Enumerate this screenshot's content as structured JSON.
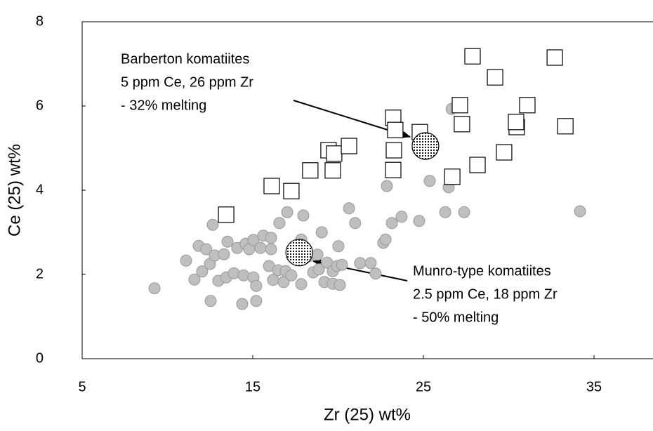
{
  "chart_data": {
    "type": "scatter",
    "x_label": "Zr (25) wt%",
    "y_label": "Ce (25) wt%",
    "xlim": [
      5,
      38.5
    ],
    "ylim": [
      0,
      8
    ],
    "xticks": [
      5,
      15,
      25,
      35
    ],
    "yticks": [
      0,
      2,
      4,
      6,
      8
    ],
    "grid": false,
    "series": [
      {
        "marker": "circle",
        "color": "#bfbfbf",
        "x": [
          9.24,
          11.09,
          11.58,
          11.83,
          12.03,
          12.27,
          12.49,
          12.53,
          12.65,
          12.77,
          12.98,
          13.31,
          13.44,
          13.52,
          13.89,
          14.09,
          14.38,
          14.46,
          14.58,
          14.79,
          15.04,
          15.04,
          15.2,
          15.2,
          15.45,
          15.62,
          15.95,
          16.07,
          16.07,
          16.19,
          16.48,
          16.56,
          16.81,
          16.93,
          17.02,
          17.26,
          17.84,
          17.96,
          17.84,
          18.25,
          18.54,
          18.79,
          18.87,
          19.04,
          19.2,
          19.36,
          19.69,
          19.69,
          19.94,
          20.02,
          20.1,
          20.23,
          20.64,
          21.0,
          21.29,
          21.91,
          22.2,
          22.65,
          22.78,
          22.86,
          23.15,
          23.72,
          24.75,
          25.37,
          26.28,
          26.48,
          26.65,
          27.39,
          34.18
        ],
        "values": [
          1.67,
          2.33,
          1.88,
          2.68,
          2.07,
          2.6,
          2.25,
          1.37,
          3.18,
          2.45,
          1.85,
          2.48,
          1.93,
          2.78,
          2.03,
          2.63,
          1.3,
          1.98,
          2.73,
          2.6,
          1.93,
          2.82,
          1.73,
          1.37,
          2.63,
          2.92,
          2.2,
          2.6,
          2.87,
          1.87,
          2.1,
          3.22,
          1.82,
          2.08,
          3.48,
          1.98,
          1.77,
          3.4,
          2.83,
          2.43,
          2.05,
          2.47,
          2.12,
          3.0,
          1.82,
          2.28,
          2.08,
          1.78,
          2.2,
          2.67,
          1.75,
          2.23,
          3.57,
          3.22,
          2.27,
          2.27,
          2.02,
          2.75,
          2.83,
          4.1,
          3.22,
          3.37,
          3.27,
          4.22,
          3.48,
          4.07,
          5.93,
          3.48,
          3.5
        ]
      },
      {
        "marker": "square",
        "color": "#ffffff",
        "x": [
          13.44,
          16.11,
          17.26,
          18.37,
          19.44,
          19.69,
          19.77,
          20.64,
          23.23,
          23.35,
          23.27,
          23.23,
          24.79,
          26.69,
          27.14,
          27.26,
          27.88,
          29.2,
          28.17,
          29.73,
          31.09,
          30.47,
          30.43,
          32.7,
          33.32
        ],
        "values": [
          3.42,
          4.1,
          3.98,
          4.47,
          4.95,
          4.47,
          4.87,
          5.05,
          5.72,
          5.43,
          4.95,
          4.48,
          5.38,
          4.32,
          6.02,
          5.57,
          7.18,
          6.68,
          4.6,
          4.9,
          6.02,
          5.5,
          5.62,
          7.15,
          5.52
        ]
      },
      {
        "marker": "dotted-circle",
        "color": "#000000",
        "x": [
          17.72,
          25.12
        ],
        "values": [
          2.52,
          5.05
        ]
      }
    ],
    "annotations": [
      {
        "lines": [
          "Barberton komatiites",
          "5 ppm Ce, 26 ppm Zr",
          "- 32% melting"
        ]
      },
      {
        "lines": [
          "Munro-type komatiites",
          "2.5 ppm Ce, 18 ppm Zr",
          "- 50% melting"
        ]
      }
    ]
  }
}
